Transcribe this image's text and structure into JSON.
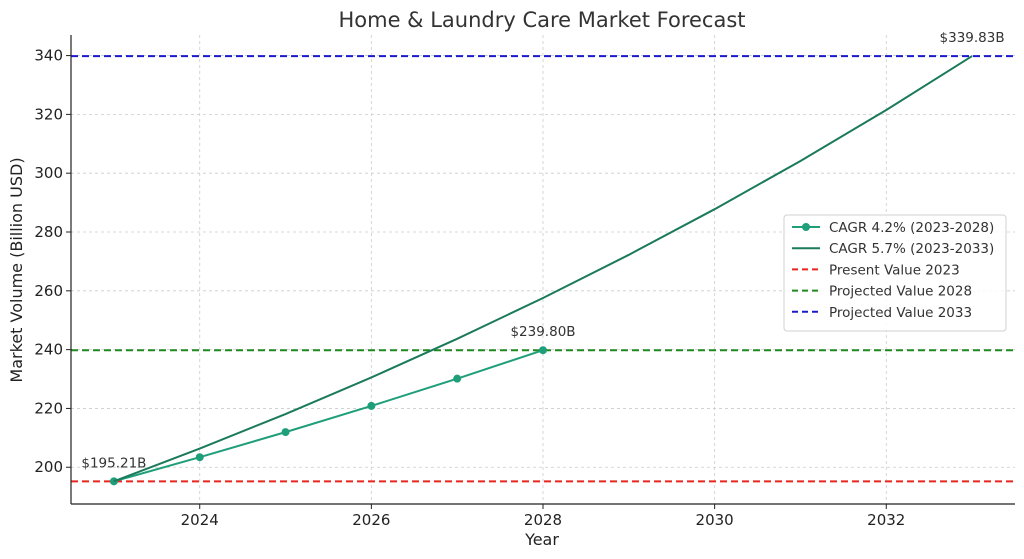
{
  "chart_data": {
    "type": "line",
    "title": "Home & Laundry Care Market Forecast",
    "xlabel": "Year",
    "ylabel": "Market Volume (Billion USD)",
    "xlim": [
      2022.5,
      2033.5
    ],
    "ylim": [
      187.5,
      347
    ],
    "xticks": [
      2024,
      2026,
      2028,
      2030,
      2032
    ],
    "yticks": [
      200,
      220,
      240,
      260,
      280,
      300,
      320,
      340
    ],
    "grid": true,
    "legend_position": "center-right",
    "series": [
      {
        "name": "CAGR 4.2% (2023-2028)",
        "color": "#1f9e7a",
        "style": "solid-markers",
        "x": [
          2023,
          2024,
          2025,
          2026,
          2027,
          2028
        ],
        "y": [
          195.21,
          203.41,
          211.95,
          220.85,
          230.13,
          239.8
        ]
      },
      {
        "name": "CAGR 5.7% (2023-2033)",
        "color": "#1a7a5a",
        "style": "solid",
        "x": [
          2023,
          2024,
          2025,
          2026,
          2027,
          2028,
          2029,
          2030,
          2031,
          2032,
          2033
        ],
        "y": [
          195.21,
          206.34,
          218.1,
          230.53,
          243.67,
          257.56,
          272.24,
          287.76,
          304.16,
          321.5,
          339.83
        ]
      }
    ],
    "reference_lines": [
      {
        "name": "Present Value 2023",
        "y": 195.21,
        "color": "#e8251f"
      },
      {
        "name": "Projected Value 2028",
        "y": 239.8,
        "color": "#1f8a1f"
      },
      {
        "name": "Projected Value 2033",
        "y": 339.83,
        "color": "#1a1acc"
      }
    ],
    "annotations": [
      {
        "text": "$195.21B",
        "x": 2023,
        "y": 195.21
      },
      {
        "text": "$239.80B",
        "x": 2028,
        "y": 239.8
      },
      {
        "text": "$339.83B",
        "x": 2033,
        "y": 339.83
      }
    ]
  }
}
